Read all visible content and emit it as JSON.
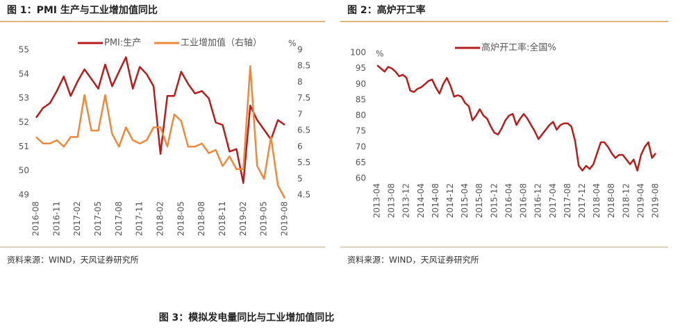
{
  "chart_data": [
    {
      "type": "line",
      "title": "图 1：PMI 生产与工业增加值同比",
      "source": "资料来源：WIND，天风证券研究所",
      "y2_unit": "%",
      "categories": [
        "2016-08",
        null,
        null,
        "2016-11",
        null,
        null,
        "2017-02",
        null,
        null,
        "2017-05",
        null,
        null,
        "2017-08",
        null,
        null,
        "2017-11",
        null,
        null,
        "2018-02",
        null,
        null,
        "2018-05",
        null,
        null,
        "2018-08",
        null,
        null,
        "2018-11",
        null,
        null,
        "2019-02",
        null,
        null,
        "2019-05",
        null,
        null,
        "2019-08"
      ],
      "series": [
        {
          "name": "PMI:生产",
          "color": "#b71c1c",
          "values": [
            52.2,
            52.6,
            52.8,
            53.3,
            53.9,
            53.1,
            53.7,
            54.2,
            53.8,
            53.4,
            54.4,
            53.5,
            54.1,
            54.7,
            53.4,
            54.3,
            54.0,
            53.5,
            50.7,
            53.1,
            53.1,
            54.1,
            53.6,
            53.2,
            53.3,
            53.0,
            52.0,
            51.9,
            50.8,
            50.9,
            49.5,
            52.7,
            52.1,
            51.7,
            51.3,
            52.1,
            51.9
          ]
        },
        {
          "name": "工业增加值（右轴）",
          "color": "#f0883a",
          "axis": "y2",
          "values": [
            6.3,
            6.1,
            6.1,
            6.2,
            6.0,
            6.3,
            6.3,
            7.6,
            6.5,
            6.5,
            7.6,
            6.4,
            6.0,
            6.6,
            6.2,
            6.1,
            6.2,
            6.6,
            6.6,
            6.0,
            7.0,
            6.8,
            6.0,
            6.0,
            6.1,
            5.8,
            5.9,
            5.4,
            5.7,
            5.3,
            5.3,
            8.5,
            5.4,
            5.0,
            6.3,
            4.8,
            4.4
          ]
        }
      ],
      "ylim": [
        49,
        55
      ],
      "yticks": [
        49,
        50,
        51,
        52,
        53,
        54,
        55
      ],
      "y2lim": [
        4.5,
        9
      ],
      "y2ticks": [
        4.5,
        5,
        5.5,
        6,
        6.5,
        7,
        7.5,
        8,
        8.5,
        9
      ],
      "grid": false
    },
    {
      "type": "line",
      "title": "图 2：高炉开工率",
      "source": "资料来源：WIND，天风证券研究所",
      "y_unit": "%",
      "categories": [
        "2013-04",
        null,
        null,
        null,
        "2013-08",
        null,
        null,
        null,
        "2013-12",
        null,
        null,
        null,
        "2014-04",
        null,
        null,
        null,
        "2014-08",
        null,
        null,
        null,
        "2014-12",
        null,
        null,
        null,
        "2015-04",
        null,
        null,
        null,
        "2015-08",
        null,
        null,
        null,
        "2015-12",
        null,
        null,
        null,
        "2016-04",
        null,
        null,
        null,
        "2016-08",
        null,
        null,
        null,
        "2016-12",
        null,
        null,
        null,
        "2017-04",
        null,
        null,
        null,
        "2017-08",
        null,
        null,
        null,
        "2017-12",
        null,
        null,
        null,
        "2018-04",
        null,
        null,
        null,
        "2018-08",
        null,
        null,
        null,
        "2018-12",
        null,
        null,
        null,
        "2019-04",
        null,
        null,
        null,
        "2019-08"
      ],
      "series": [
        {
          "name": "高炉开工率:全国%",
          "color": "#b71c1c",
          "values": [
            96,
            95,
            94,
            95.5,
            95,
            94,
            92.5,
            93,
            92,
            88,
            87.5,
            88.5,
            89,
            90,
            91,
            91.5,
            89,
            87,
            90,
            92,
            89.5,
            86,
            86.5,
            86,
            84,
            83,
            78.5,
            80,
            82,
            80,
            79,
            76.5,
            74.5,
            74,
            76,
            78.5,
            80,
            80.5,
            77,
            79,
            80.5,
            79,
            77,
            75,
            72.5,
            74,
            75.5,
            77,
            78,
            75.5,
            77,
            77.5,
            77.5,
            76.5,
            72,
            64,
            62.5,
            64,
            63,
            64.5,
            68,
            71.5,
            71.5,
            70,
            68,
            66.5,
            67.5,
            67.5,
            66,
            64.5,
            66,
            62.5,
            67.5,
            70,
            71.5,
            66.5,
            68
          ]
        }
      ],
      "ylim": [
        60,
        100
      ],
      "yticks": [
        60,
        65,
        70,
        75,
        80,
        85,
        90,
        95,
        100
      ],
      "grid": false
    }
  ],
  "figure3_title": "图 3：模拟发电量同比与工业增加值同比"
}
